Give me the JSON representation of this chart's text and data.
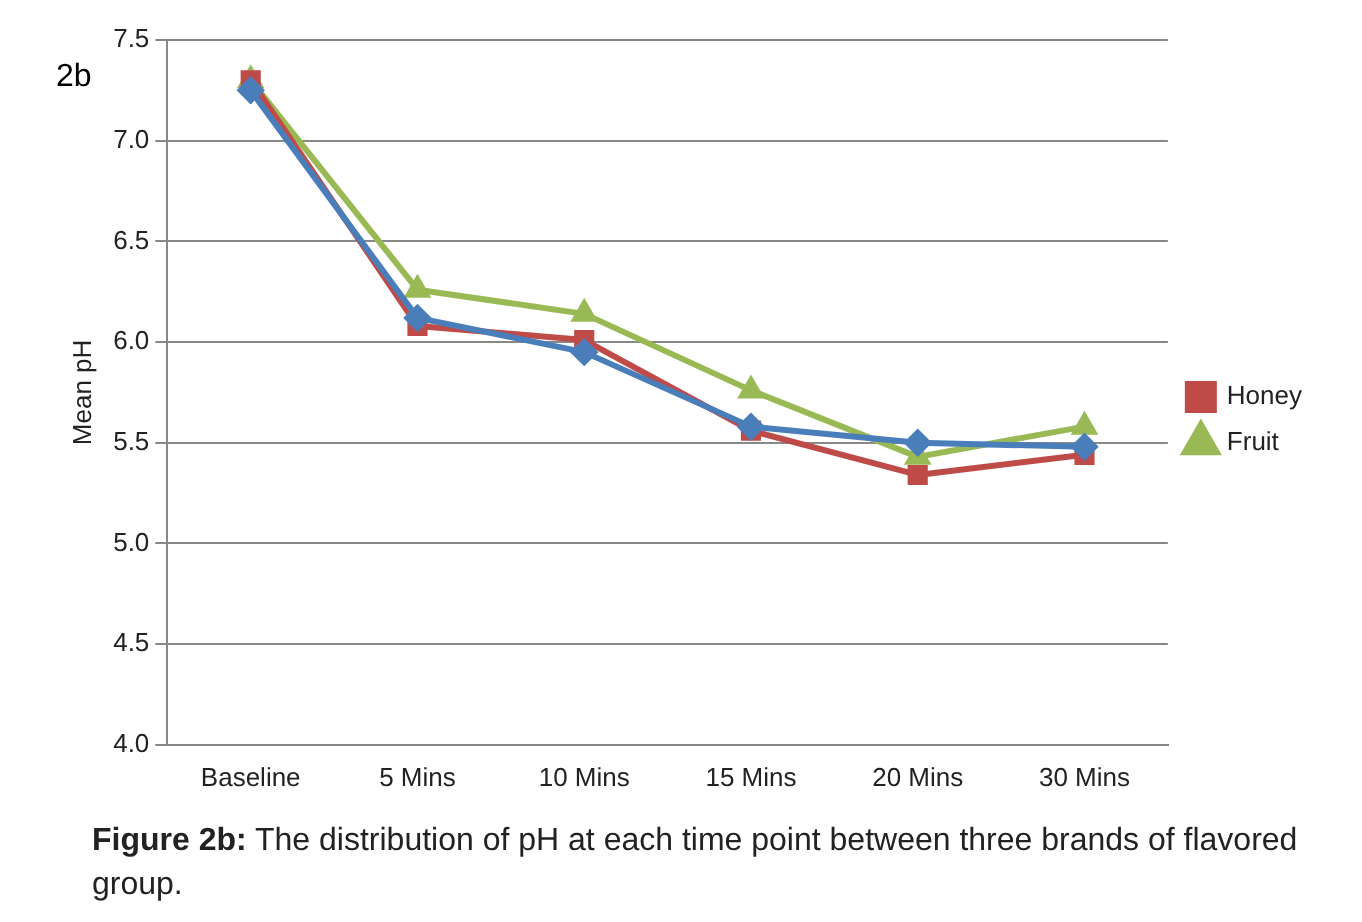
{
  "chart_data": {
    "type": "line",
    "subtitle": "2b",
    "ylabel": "Mean pH",
    "categories": [
      "Baseline",
      "5 Mins",
      "10 Mins",
      "15 Mins",
      "20 Mins",
      "30 Mins"
    ],
    "series": [
      {
        "color": "#4a7ebb",
        "marker": "diamond",
        "values": [
          7.25,
          6.12,
          5.95,
          5.58,
          5.5,
          5.48
        ]
      },
      {
        "name": "Honey",
        "color": "#be4b48",
        "marker": "square",
        "values": [
          7.3,
          6.08,
          6.01,
          5.56,
          5.34,
          5.44
        ]
      },
      {
        "name": "Fruit",
        "color": "#98b954",
        "marker": "triangle",
        "values": [
          7.3,
          6.26,
          6.14,
          5.76,
          5.43,
          5.58
        ]
      }
    ],
    "ylim": [
      4,
      7.5
    ],
    "yticks": [
      {
        "value": 4,
        "label": "4.0"
      },
      {
        "value": 4.5,
        "label": "4.5"
      },
      {
        "value": 5,
        "label": "5.0"
      },
      {
        "value": 5.5,
        "label": "5.5"
      },
      {
        "value": 6,
        "label": "6.0"
      },
      {
        "value": 6.5,
        "label": "6.5"
      },
      {
        "value": 7,
        "label": "7.0"
      },
      {
        "value": 7.5,
        "label": "7.5"
      }
    ],
    "grid": "y",
    "legend": "right",
    "annotations": [
      "Figure 2b: The distribution of pH at each time point between three brands of flavored group."
    ]
  }
}
